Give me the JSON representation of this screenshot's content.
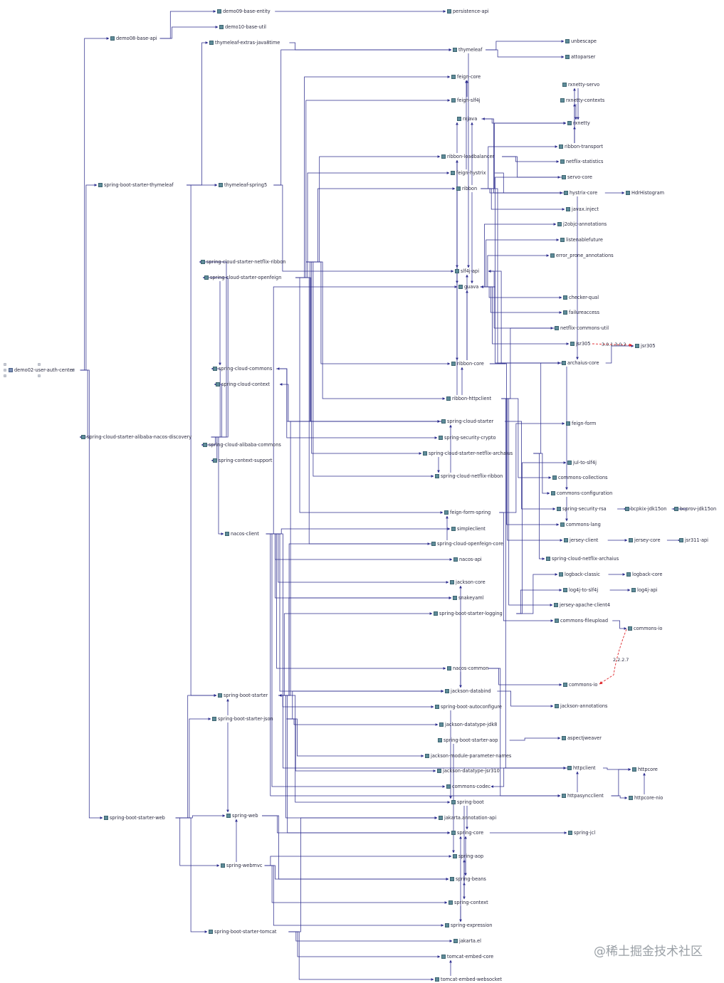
{
  "nodes": {
    "root": "demo02-user-auth-center",
    "demo08": "demo08-base-api",
    "demo09": "demo09-base-entity",
    "demo10": "demo10-base-util",
    "persistence": "persistence-api",
    "sbs_thymeleaf": "spring-boot-starter-thymeleaf",
    "thy_extras": "thymeleaf-extras-java8time",
    "thymeleaf": "thymeleaf",
    "unbescape": "unbescape",
    "attoparser": "attoparser",
    "feign_core": "feign-core",
    "feign_slf4j": "feign-slf4j",
    "rxjava": "rxjava",
    "rxnetty_servo": "rxnetty-servo",
    "rxnetty_contexts": "rxnetty-contexts",
    "rxnetty": "rxnetty",
    "ribbon_lb": "ribbon-loadbalancer",
    "ribbon_transport": "ribbon-transport",
    "netflix_statistics": "netflix-statistics",
    "feign_hystrix": "feign-hystrix",
    "servo_core": "servo-core",
    "thy_spring5": "thymeleaf-spring5",
    "ribbon": "ribbon",
    "hystrix_core": "hystrix-core",
    "hdrhistogram": "HdrHistogram",
    "javax_inject": "javax.inject",
    "j2objc": "j2objc-annotations",
    "listenablefuture": "listenablefuture",
    "error_prone": "error_prone_annotations",
    "scs_netflix_ribbon": "spring-cloud-starter-netflix-ribbon",
    "scs_openfeign": "spring-cloud-starter-openfeign",
    "slf4j_api": "slf4j-api",
    "guava": "guava",
    "checker_qual": "checker-qual",
    "failureaccess": "failureaccess",
    "netflix_commons_util": "netflix-commons-util",
    "jsr305_a": "jsr305",
    "jsr305_b": "jsr305",
    "jsr305_conflict": "3.0.1.3.0.2",
    "ribbon_core": "ribbon-core",
    "archaius_core": "archaius-core",
    "sc_commons": "spring-cloud-commons",
    "sc_context": "spring-cloud-context",
    "ribbon_httpclient": "ribbon-httpclient",
    "scs_nacos": "spring-cloud-starter-alibaba-nacos-discovery",
    "sc_starter": "spring-cloud-starter",
    "feign_form": "feign-form",
    "spring_sec_crypto": "spring-security-crypto",
    "sca_commons": "spring-cloud-alibaba-commons",
    "scs_netflix_archaius": "spring-cloud-starter-netflix-archaius",
    "context_support": "spring-context-support",
    "jul_slf4j": "jul-to-slf4j",
    "sc_netflix_ribbon": "spring-cloud-netflix-ribbon",
    "commons_collections": "commons-collections",
    "commons_configuration": "commons-configuration",
    "spring_sec_rsa": "spring-security-rsa",
    "bcpkix": "bcpkix-jdk15on",
    "bcprov": "bcprov-jdk15on",
    "feign_form_spring": "feign-form-spring",
    "commons_lang": "commons-lang",
    "simpleclient": "simpleclient",
    "nacos_client": "nacos-client",
    "jersey_client": "jersey-client",
    "jersey_core": "jersey-core",
    "jsr311": "jsr311-api",
    "sc_openfeign_core": "spring-cloud-openfeign-core",
    "sc_netflix_archaius": "spring-cloud-netflix-archaius",
    "nacos_api": "nacos-api",
    "logback_classic": "logback-classic",
    "logback_core": "logback-core",
    "jackson_core": "jackson-core",
    "log4j_slf4j": "log4j-to-slf4j",
    "log4j_api": "log4j-api",
    "snakeyaml": "snakeyaml",
    "jersey_apache": "jersey-apache-client4",
    "sbs_logging": "spring-boot-starter-logging",
    "commons_fileupload": "commons-fileupload",
    "commons_io_a": "commons-io",
    "commons_io_conflict": "2.2.2.7",
    "nacos_common": "nacos-common",
    "commons_io_b": "commons-io",
    "sb_starter": "spring-boot-starter",
    "jackson_databind": "jackson-databind",
    "jackson_annotations": "jackson-annotations",
    "sbs_json": "spring-boot-starter-json",
    "sb_autoconfigure": "spring-boot-autoconfigure",
    "jackson_jdk8": "jackson-datatype-jdk8",
    "aspectjweaver": "aspectjweaver",
    "sbs_aop": "spring-boot-starter-aop",
    "jackson_params": "jackson-module-parameter-names",
    "httpclient": "httpclient",
    "httpcore": "httpcore",
    "jackson_jsr310": "jackson-datatype-jsr310",
    "httpasyncclient": "httpasyncclient",
    "httpcore_nio": "httpcore-nio",
    "commons_codec": "commons-codec",
    "spring_boot": "spring-boot",
    "sbs_web": "spring-boot-starter-web",
    "jakarta_annotation": "jakarta.annotation-api",
    "spring_web": "spring-web",
    "spring_core": "spring-core",
    "spring_jcl": "spring-jcl",
    "spring_aop": "spring-aop",
    "spring_webmvc": "spring-webmvc",
    "spring_beans": "spring-beans",
    "spring_context": "spring-context",
    "spring_expression": "spring-expression",
    "sbs_tomcat": "spring-boot-starter-tomcat",
    "jakarta_el": "jakarta.el",
    "tomcat_core": "tomcat-embed-core",
    "tomcat_ws": "tomcat-embed-websocket"
  },
  "watermark": "@稀土掘金技术社区",
  "colors": {
    "edge": "#2e2e8f",
    "conflict": "#e0262b",
    "icon": "#5f8d9a"
  },
  "icons": {
    "node": "library-jar-icon"
  }
}
